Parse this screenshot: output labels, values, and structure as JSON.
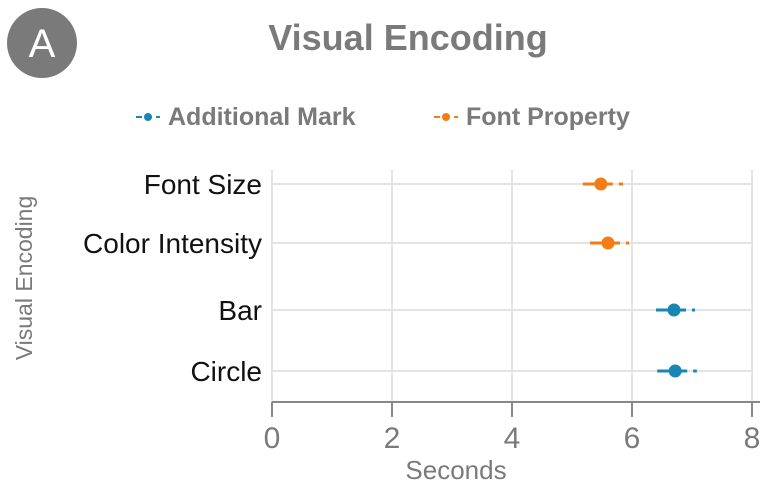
{
  "panel_label": "A",
  "chart_data": {
    "type": "scatter",
    "title": "Visual Encoding",
    "xlabel": "Seconds",
    "ylabel": "Visual Encoding",
    "xlim": [
      0,
      8
    ],
    "x_ticks": [
      "0",
      "2",
      "4",
      "6",
      "8"
    ],
    "grid": true,
    "legend_position": "top",
    "categories": [
      "Font Size",
      "Color Intensity",
      "Bar",
      "Circle"
    ],
    "series": [
      {
        "name": "Additional Mark",
        "color": "#1a86b3",
        "points": [
          {
            "category": "Bar",
            "x": 6.7,
            "ci": [
              6.4,
              7.05
            ]
          },
          {
            "category": "Circle",
            "x": 6.72,
            "ci": [
              6.42,
              7.08
            ]
          }
        ]
      },
      {
        "name": "Font Property",
        "color": "#f47c16",
        "points": [
          {
            "category": "Font Size",
            "x": 5.48,
            "ci": [
              5.18,
              5.85
            ]
          },
          {
            "category": "Color Intensity",
            "x": 5.6,
            "ci": [
              5.3,
              5.95
            ]
          }
        ]
      }
    ]
  }
}
